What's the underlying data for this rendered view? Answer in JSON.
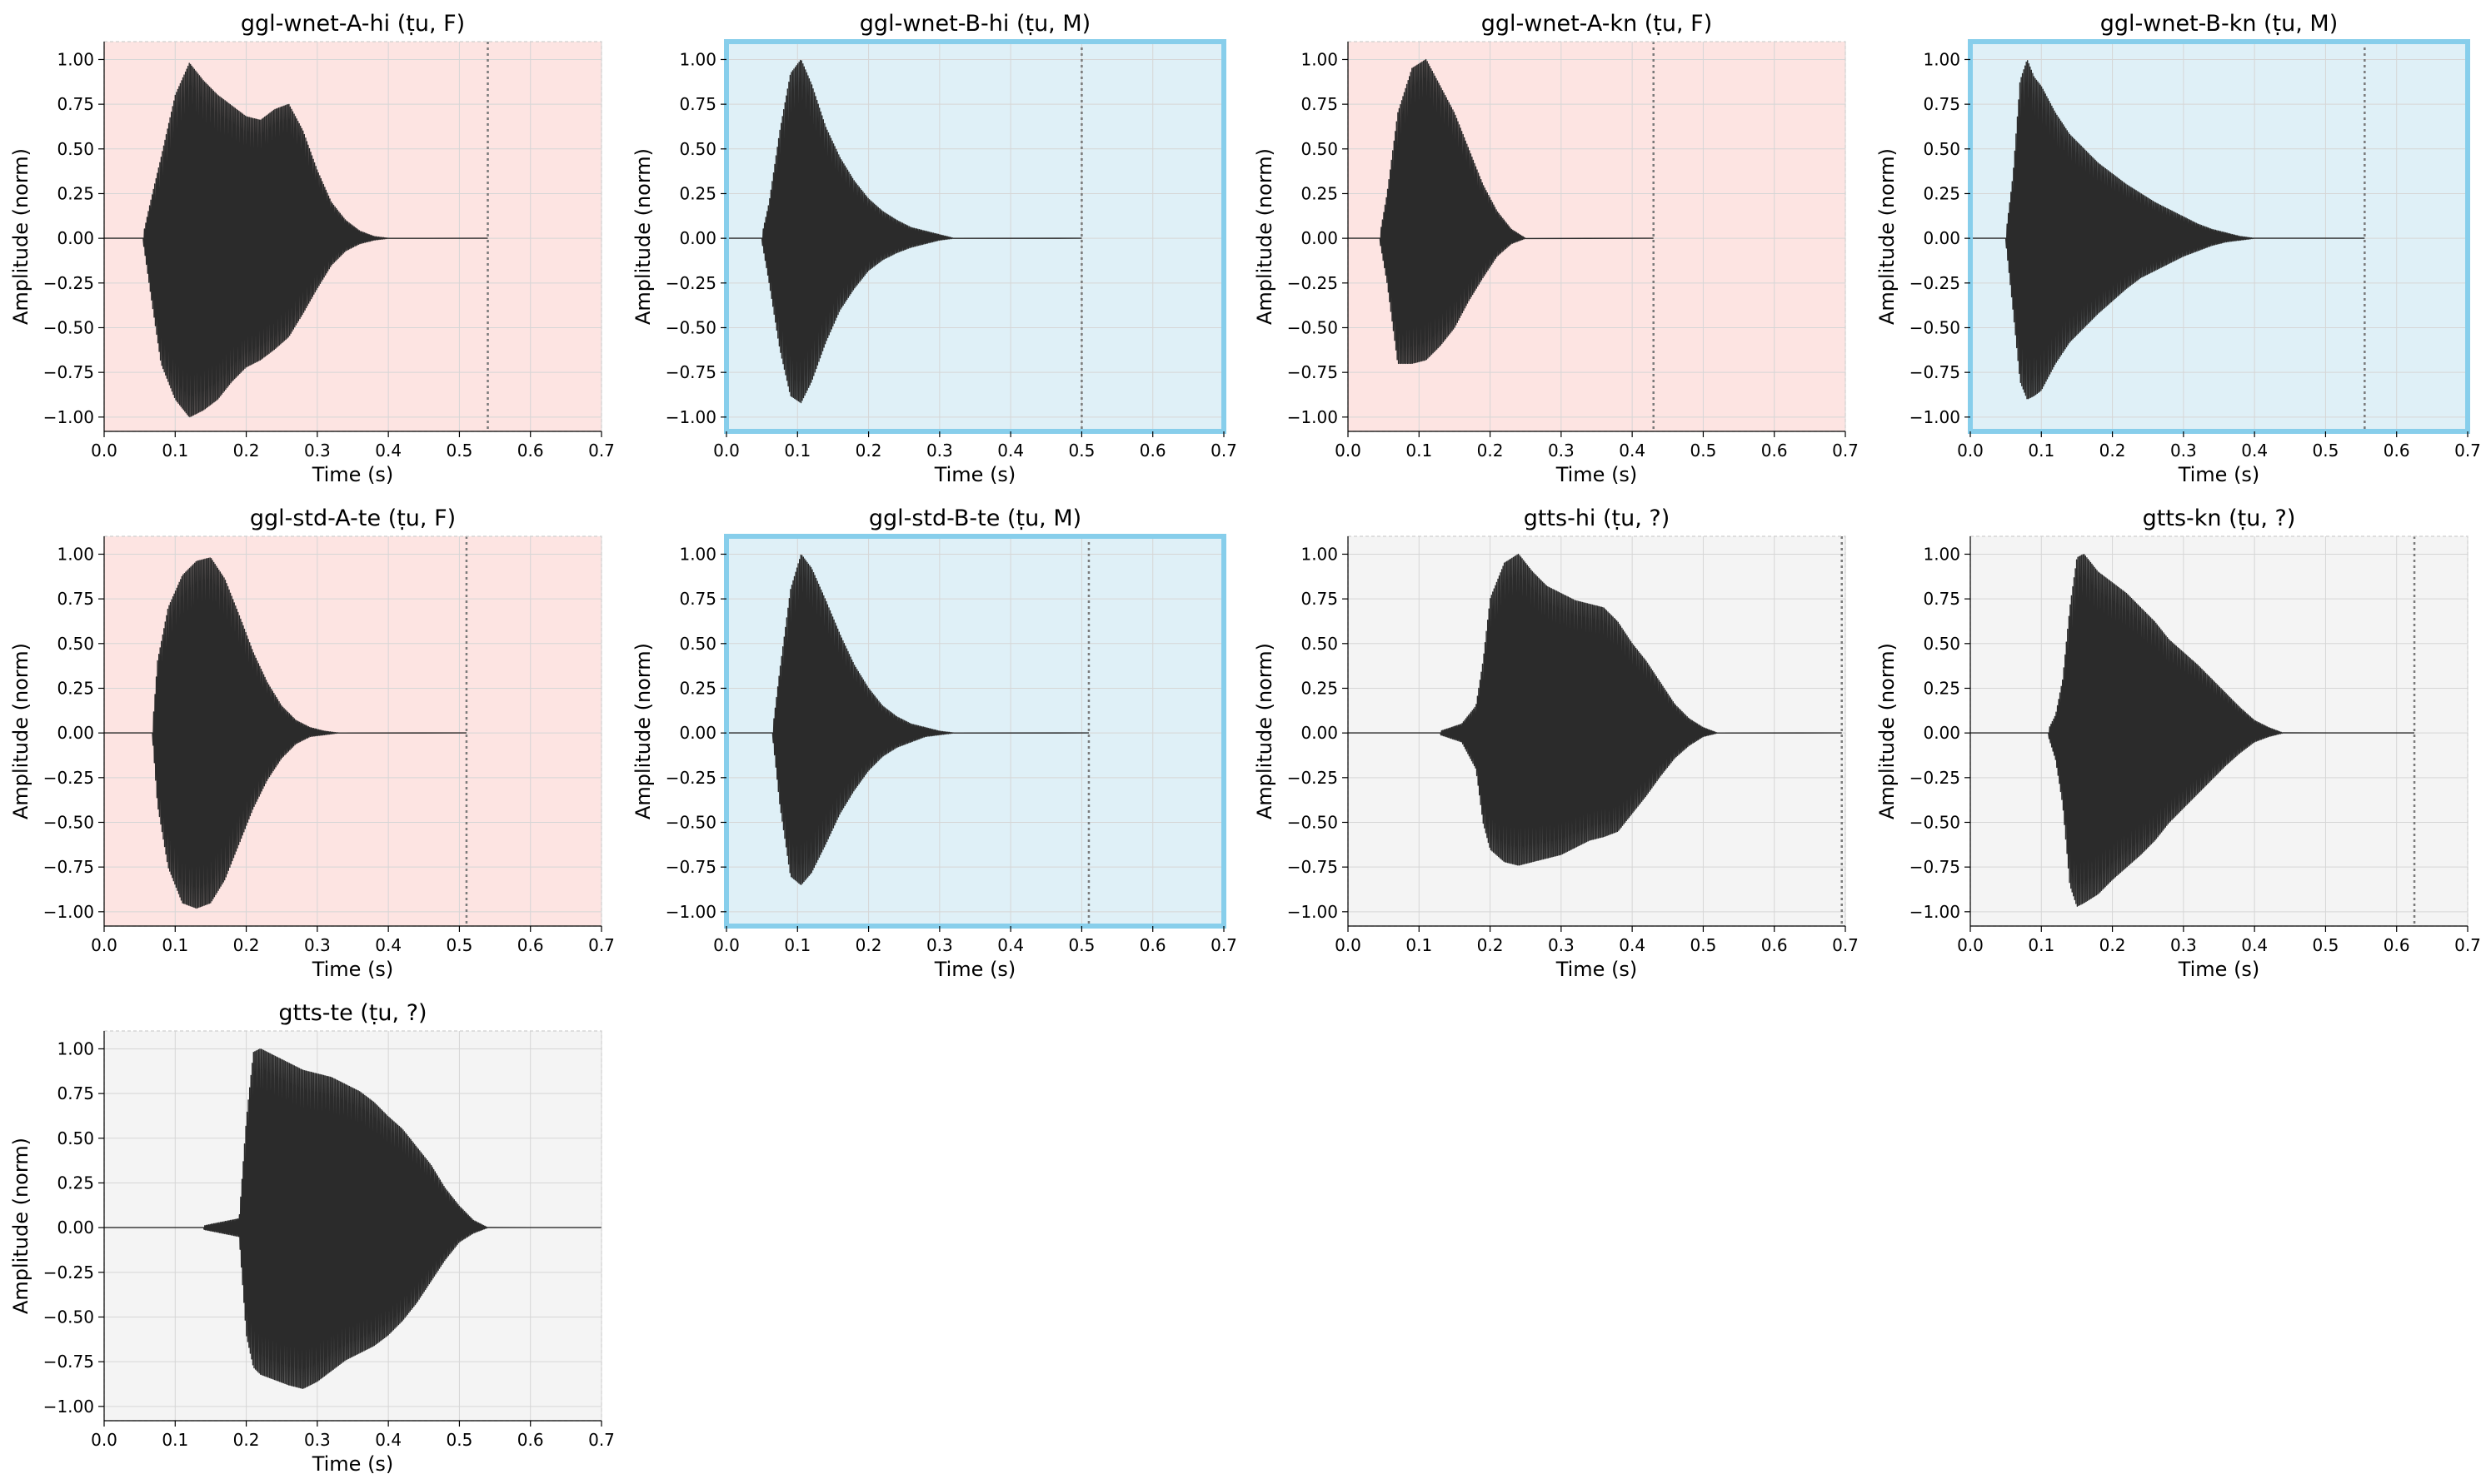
{
  "chart_data": [
    {
      "type": "line",
      "title": "ggl-wnet-A-hi (ṭu, F)",
      "xlabel": "Time (s)",
      "ylabel": "Amplitude (norm)",
      "xlim": [
        0,
        0.7
      ],
      "ylim": [
        -1.08,
        1.1
      ],
      "xticks": [
        "0.0",
        "0.1",
        "0.2",
        "0.3",
        "0.4",
        "0.5",
        "0.6",
        "0.7"
      ],
      "yticks": [
        "1.00",
        "0.75",
        "0.50",
        "0.25",
        "0.00",
        "−0.25",
        "−0.50",
        "−0.75",
        "−1.00"
      ],
      "grid": true,
      "group": "A",
      "background": "#fde4e2",
      "frame_color": "#d0d0d0",
      "frame_highlight": false,
      "duration_marker": 0.54,
      "envelope": {
        "t": [
          0.055,
          0.065,
          0.08,
          0.1,
          0.12,
          0.14,
          0.16,
          0.18,
          0.2,
          0.22,
          0.24,
          0.26,
          0.28,
          0.3,
          0.32,
          0.34,
          0.36,
          0.38,
          0.4
        ],
        "upper": [
          0.02,
          0.2,
          0.45,
          0.8,
          0.98,
          0.88,
          0.8,
          0.74,
          0.68,
          0.66,
          0.72,
          0.75,
          0.6,
          0.38,
          0.2,
          0.1,
          0.04,
          0.01,
          0.0
        ],
        "lower": [
          -0.02,
          -0.3,
          -0.7,
          -0.9,
          -1.0,
          -0.96,
          -0.9,
          -0.8,
          -0.72,
          -0.68,
          -0.62,
          -0.55,
          -0.42,
          -0.28,
          -0.15,
          -0.07,
          -0.03,
          -0.01,
          0.0
        ]
      }
    },
    {
      "type": "line",
      "title": "ggl-wnet-B-hi (ṭu, M)",
      "xlabel": "Time (s)",
      "ylabel": "Amplitude (norm)",
      "xlim": [
        0,
        0.7
      ],
      "ylim": [
        -1.08,
        1.1
      ],
      "xticks": [
        "0.0",
        "0.1",
        "0.2",
        "0.3",
        "0.4",
        "0.5",
        "0.6",
        "0.7"
      ],
      "yticks": [
        "1.00",
        "0.75",
        "0.50",
        "0.25",
        "0.00",
        "−0.25",
        "−0.50",
        "−0.75",
        "−1.00"
      ],
      "grid": true,
      "group": "B",
      "background": "#dff0f7",
      "frame_color": "#87ceeb",
      "frame_highlight": true,
      "duration_marker": 0.5,
      "envelope": {
        "t": [
          0.05,
          0.06,
          0.075,
          0.09,
          0.105,
          0.12,
          0.14,
          0.16,
          0.18,
          0.2,
          0.22,
          0.24,
          0.26,
          0.28,
          0.3,
          0.32
        ],
        "upper": [
          0.02,
          0.2,
          0.6,
          0.92,
          1.0,
          0.86,
          0.62,
          0.45,
          0.32,
          0.22,
          0.15,
          0.1,
          0.06,
          0.04,
          0.02,
          0.0
        ],
        "lower": [
          -0.02,
          -0.25,
          -0.62,
          -0.88,
          -0.92,
          -0.8,
          -0.58,
          -0.4,
          -0.28,
          -0.18,
          -0.12,
          -0.08,
          -0.05,
          -0.03,
          -0.01,
          0.0
        ]
      }
    },
    {
      "type": "line",
      "title": "ggl-wnet-A-kn (ṭu, F)",
      "xlabel": "Time (s)",
      "ylabel": "Amplitude (norm)",
      "xlim": [
        0,
        0.7
      ],
      "ylim": [
        -1.08,
        1.1
      ],
      "xticks": [
        "0.0",
        "0.1",
        "0.2",
        "0.3",
        "0.4",
        "0.5",
        "0.6",
        "0.7"
      ],
      "yticks": [
        "1.00",
        "0.75",
        "0.50",
        "0.25",
        "0.00",
        "−0.25",
        "−0.50",
        "−0.75",
        "−1.00"
      ],
      "grid": true,
      "group": "A",
      "background": "#fde4e2",
      "frame_color": "#d0d0d0",
      "frame_highlight": false,
      "duration_marker": 0.43,
      "envelope": {
        "t": [
          0.045,
          0.055,
          0.07,
          0.09,
          0.11,
          0.13,
          0.15,
          0.17,
          0.19,
          0.21,
          0.23,
          0.25
        ],
        "upper": [
          0.02,
          0.25,
          0.7,
          0.95,
          1.0,
          0.85,
          0.7,
          0.5,
          0.3,
          0.15,
          0.05,
          0.0
        ],
        "lower": [
          -0.02,
          -0.25,
          -0.7,
          -0.7,
          -0.68,
          -0.6,
          -0.5,
          -0.35,
          -0.22,
          -0.1,
          -0.03,
          0.0
        ]
      }
    },
    {
      "type": "line",
      "title": "ggl-wnet-B-kn (ṭu, M)",
      "xlabel": "Time (s)",
      "ylabel": "Amplitude (norm)",
      "xlim": [
        0,
        0.7
      ],
      "ylim": [
        -1.08,
        1.1
      ],
      "xticks": [
        "0.0",
        "0.1",
        "0.2",
        "0.3",
        "0.4",
        "0.5",
        "0.6",
        "0.7"
      ],
      "yticks": [
        "1.00",
        "0.75",
        "0.50",
        "0.25",
        "0.00",
        "−0.25",
        "−0.50",
        "−0.75",
        "−1.00"
      ],
      "grid": true,
      "group": "B",
      "background": "#dff0f7",
      "frame_color": "#87ceeb",
      "frame_highlight": true,
      "duration_marker": 0.555,
      "envelope": {
        "t": [
          0.05,
          0.06,
          0.07,
          0.08,
          0.09,
          0.1,
          0.12,
          0.14,
          0.16,
          0.18,
          0.2,
          0.22,
          0.24,
          0.26,
          0.28,
          0.3,
          0.32,
          0.34,
          0.36,
          0.38,
          0.4
        ],
        "upper": [
          0.02,
          0.35,
          0.88,
          1.0,
          0.9,
          0.85,
          0.7,
          0.58,
          0.5,
          0.42,
          0.36,
          0.3,
          0.25,
          0.2,
          0.16,
          0.12,
          0.08,
          0.05,
          0.03,
          0.01,
          0.0
        ],
        "lower": [
          -0.02,
          -0.4,
          -0.8,
          -0.9,
          -0.88,
          -0.85,
          -0.7,
          -0.58,
          -0.5,
          -0.42,
          -0.35,
          -0.28,
          -0.22,
          -0.18,
          -0.14,
          -0.1,
          -0.07,
          -0.04,
          -0.02,
          -0.01,
          0.0
        ]
      }
    },
    {
      "type": "line",
      "title": "ggl-std-A-te (ṭu, F)",
      "xlabel": "Time (s)",
      "ylabel": "Amplitude (norm)",
      "xlim": [
        0,
        0.7
      ],
      "ylim": [
        -1.08,
        1.1
      ],
      "xticks": [
        "0.0",
        "0.1",
        "0.2",
        "0.3",
        "0.4",
        "0.5",
        "0.6",
        "0.7"
      ],
      "yticks": [
        "1.00",
        "0.75",
        "0.50",
        "0.25",
        "0.00",
        "−0.25",
        "−0.50",
        "−0.75",
        "−1.00"
      ],
      "grid": true,
      "group": "A",
      "background": "#fde4e2",
      "frame_color": "#d0d0d0",
      "frame_highlight": false,
      "duration_marker": 0.51,
      "envelope": {
        "t": [
          0.068,
          0.075,
          0.09,
          0.11,
          0.13,
          0.15,
          0.17,
          0.19,
          0.21,
          0.23,
          0.25,
          0.27,
          0.29,
          0.31,
          0.33
        ],
        "upper": [
          0.02,
          0.4,
          0.7,
          0.88,
          0.96,
          0.98,
          0.86,
          0.66,
          0.45,
          0.28,
          0.15,
          0.07,
          0.03,
          0.01,
          0.0
        ],
        "lower": [
          -0.02,
          -0.4,
          -0.75,
          -0.95,
          -0.98,
          -0.95,
          -0.82,
          -0.62,
          -0.42,
          -0.26,
          -0.14,
          -0.06,
          -0.02,
          -0.01,
          0.0
        ]
      }
    },
    {
      "type": "line",
      "title": "ggl-std-B-te (ṭu, M)",
      "xlabel": "Time (s)",
      "ylabel": "Amplitude (norm)",
      "xlim": [
        0,
        0.7
      ],
      "ylim": [
        -1.08,
        1.1
      ],
      "xticks": [
        "0.0",
        "0.1",
        "0.2",
        "0.3",
        "0.4",
        "0.5",
        "0.6",
        "0.7"
      ],
      "yticks": [
        "1.00",
        "0.75",
        "0.50",
        "0.25",
        "0.00",
        "−0.25",
        "−0.50",
        "−0.75",
        "−1.00"
      ],
      "grid": true,
      "group": "B",
      "background": "#dff0f7",
      "frame_color": "#87ceeb",
      "frame_highlight": true,
      "duration_marker": 0.51,
      "envelope": {
        "t": [
          0.065,
          0.075,
          0.09,
          0.105,
          0.12,
          0.14,
          0.16,
          0.18,
          0.2,
          0.22,
          0.24,
          0.26,
          0.28,
          0.3,
          0.32
        ],
        "upper": [
          0.02,
          0.35,
          0.8,
          1.0,
          0.92,
          0.74,
          0.55,
          0.38,
          0.25,
          0.15,
          0.09,
          0.05,
          0.03,
          0.01,
          0.0
        ],
        "lower": [
          -0.02,
          -0.4,
          -0.8,
          -0.85,
          -0.78,
          -0.62,
          -0.45,
          -0.32,
          -0.21,
          -0.13,
          -0.08,
          -0.05,
          -0.02,
          -0.01,
          0.0
        ]
      }
    },
    {
      "type": "line",
      "title": "gtts-hi (ṭu, ?)",
      "xlabel": "Time (s)",
      "ylabel": "Amplitude (norm)",
      "xlim": [
        0,
        0.7
      ],
      "ylim": [
        -1.08,
        1.1
      ],
      "xticks": [
        "0.0",
        "0.1",
        "0.2",
        "0.3",
        "0.4",
        "0.5",
        "0.6",
        "0.7"
      ],
      "yticks": [
        "1.00",
        "0.75",
        "0.50",
        "0.25",
        "0.00",
        "−0.25",
        "−0.50",
        "−0.75",
        "−1.00"
      ],
      "grid": true,
      "group": "unknown",
      "background": "#f4f4f4",
      "frame_color": "#d0d0d0",
      "frame_highlight": false,
      "duration_marker": 0.695,
      "envelope": {
        "t": [
          0.13,
          0.16,
          0.18,
          0.19,
          0.2,
          0.22,
          0.24,
          0.26,
          0.28,
          0.3,
          0.32,
          0.34,
          0.36,
          0.38,
          0.4,
          0.42,
          0.44,
          0.46,
          0.48,
          0.5,
          0.52
        ],
        "upper": [
          0.01,
          0.05,
          0.15,
          0.4,
          0.75,
          0.95,
          1.0,
          0.9,
          0.82,
          0.78,
          0.74,
          0.72,
          0.7,
          0.62,
          0.5,
          0.4,
          0.28,
          0.16,
          0.08,
          0.03,
          0.0
        ],
        "lower": [
          -0.01,
          -0.05,
          -0.2,
          -0.5,
          -0.65,
          -0.72,
          -0.74,
          -0.72,
          -0.7,
          -0.68,
          -0.64,
          -0.6,
          -0.58,
          -0.55,
          -0.45,
          -0.35,
          -0.24,
          -0.14,
          -0.07,
          -0.02,
          0.0
        ]
      }
    },
    {
      "type": "line",
      "title": "gtts-kn (ṭu, ?)",
      "xlabel": "Time (s)",
      "ylabel": "Amplitude (norm)",
      "xlim": [
        0,
        0.7
      ],
      "ylim": [
        -1.08,
        1.1
      ],
      "xticks": [
        "0.0",
        "0.1",
        "0.2",
        "0.3",
        "0.4",
        "0.5",
        "0.6",
        "0.7"
      ],
      "yticks": [
        "1.00",
        "0.75",
        "0.50",
        "0.25",
        "0.00",
        "−0.25",
        "−0.50",
        "−0.75",
        "−1.00"
      ],
      "grid": true,
      "group": "unknown",
      "background": "#f4f4f4",
      "frame_color": "#d0d0d0",
      "frame_highlight": false,
      "duration_marker": 0.625,
      "envelope": {
        "t": [
          0.11,
          0.12,
          0.13,
          0.14,
          0.15,
          0.16,
          0.18,
          0.2,
          0.22,
          0.24,
          0.26,
          0.28,
          0.3,
          0.32,
          0.34,
          0.36,
          0.38,
          0.4,
          0.42,
          0.44
        ],
        "upper": [
          0.02,
          0.1,
          0.3,
          0.7,
          0.98,
          1.0,
          0.9,
          0.84,
          0.78,
          0.7,
          0.62,
          0.52,
          0.45,
          0.38,
          0.3,
          0.22,
          0.14,
          0.07,
          0.03,
          0.0
        ],
        "lower": [
          -0.02,
          -0.15,
          -0.4,
          -0.85,
          -0.97,
          -0.95,
          -0.9,
          -0.82,
          -0.75,
          -0.68,
          -0.6,
          -0.5,
          -0.42,
          -0.34,
          -0.26,
          -0.18,
          -0.11,
          -0.05,
          -0.02,
          0.0
        ]
      }
    },
    {
      "type": "line",
      "title": "gtts-te (ṭu, ?)",
      "xlabel": "Time (s)",
      "ylabel": "Amplitude (norm)",
      "xlim": [
        0,
        0.7
      ],
      "ylim": [
        -1.08,
        1.1
      ],
      "xticks": [
        "0.0",
        "0.1",
        "0.2",
        "0.3",
        "0.4",
        "0.5",
        "0.6",
        "0.7"
      ],
      "yticks": [
        "1.00",
        "0.75",
        "0.50",
        "0.25",
        "0.00",
        "−0.25",
        "−0.50",
        "−0.75",
        "−1.00"
      ],
      "grid": true,
      "group": "unknown",
      "background": "#f4f4f4",
      "frame_color": "#d0d0d0",
      "frame_highlight": false,
      "duration_marker": null,
      "envelope": {
        "t": [
          0.14,
          0.19,
          0.2,
          0.21,
          0.22,
          0.24,
          0.26,
          0.28,
          0.3,
          0.32,
          0.34,
          0.36,
          0.38,
          0.4,
          0.42,
          0.44,
          0.46,
          0.48,
          0.5,
          0.52,
          0.54
        ],
        "upper": [
          0.01,
          0.05,
          0.6,
          0.98,
          1.0,
          0.96,
          0.92,
          0.88,
          0.86,
          0.84,
          0.8,
          0.76,
          0.7,
          0.62,
          0.55,
          0.45,
          0.35,
          0.22,
          0.12,
          0.04,
          0.0
        ],
        "lower": [
          -0.01,
          -0.05,
          -0.6,
          -0.78,
          -0.82,
          -0.85,
          -0.88,
          -0.9,
          -0.86,
          -0.8,
          -0.74,
          -0.7,
          -0.66,
          -0.6,
          -0.52,
          -0.42,
          -0.3,
          -0.18,
          -0.08,
          -0.03,
          0.0
        ]
      }
    }
  ]
}
